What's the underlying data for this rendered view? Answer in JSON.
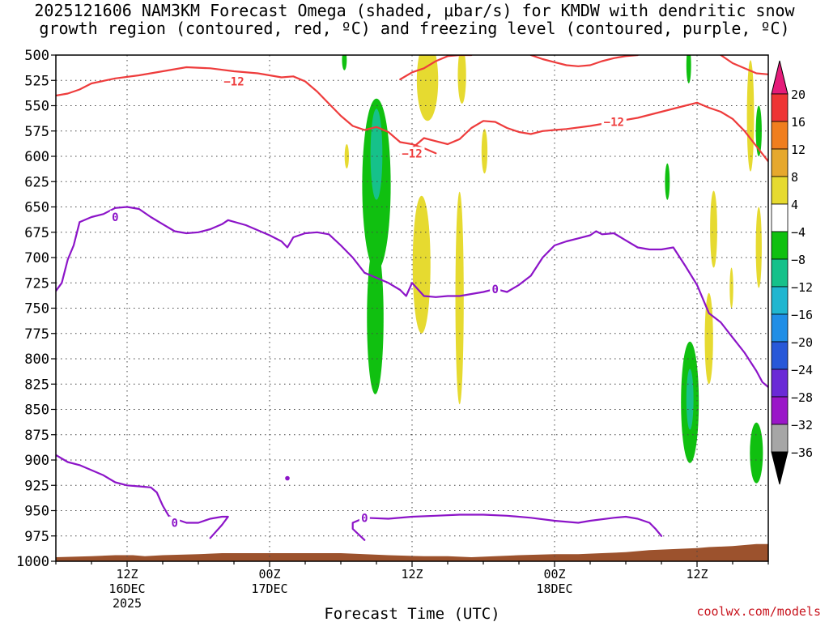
{
  "title_line1": "2025121606 NAM3KM Forecast Omega (shaded, μbar/s) for KMDW with dendritic snow",
  "title_line2": "growth region (contoured, red, ºC) and freezing level (contoured, purple, ºC)",
  "credit": "coolwx.com/models",
  "chart_data": {
    "type": "heatmap",
    "title": "2025121606 NAM3KM Forecast Omega (shaded, μbar/s) for KMDW with dendritic snow growth region (contoured, red, ºC) and freezing level (contoured, purple, ºC)",
    "xlabel": "Forecast Time (UTC)",
    "ylabel": "",
    "x_unit": "forecast hour from 2025-12-16 06Z",
    "xlim": [
      0,
      60
    ],
    "ylim": [
      1000,
      500
    ],
    "y_ticks": [
      500,
      525,
      550,
      575,
      600,
      625,
      650,
      675,
      700,
      725,
      750,
      775,
      800,
      825,
      850,
      875,
      900,
      925,
      950,
      975,
      1000
    ],
    "x_ticks": [
      {
        "x": 6,
        "lines": [
          "12Z",
          "16DEC",
          "2025"
        ]
      },
      {
        "x": 18,
        "lines": [
          "00Z",
          "17DEC"
        ]
      },
      {
        "x": 30,
        "lines": [
          "12Z"
        ]
      },
      {
        "x": 42,
        "lines": [
          "00Z",
          "18DEC"
        ]
      },
      {
        "x": 54,
        "lines": [
          "12Z"
        ]
      }
    ],
    "grid": true,
    "colorbar": {
      "labels": [
        "20",
        "16",
        "12",
        "8",
        "4",
        "−4",
        "−8",
        "−12",
        "−16",
        "−20",
        "−24",
        "−28",
        "−32",
        "−36"
      ],
      "bins": [
        {
          "color": "#e51c7a"
        },
        {
          "color": "#ee3535"
        },
        {
          "color": "#f07e1e"
        },
        {
          "color": "#e6a82d"
        },
        {
          "color": "#e6da30"
        },
        {
          "color": "#ffffff"
        },
        {
          "color": "#10c010"
        },
        {
          "color": "#16c18a"
        },
        {
          "color": "#20b6d0"
        },
        {
          "color": "#208ee6"
        },
        {
          "color": "#2858d8"
        },
        {
          "color": "#6a2ad6"
        },
        {
          "color": "#9a17c8"
        },
        {
          "color": "#a6a6a6"
        }
      ]
    },
    "series": [
      {
        "field": "dendritic growth isotherm",
        "color": "#ee3c3c",
        "value_label": "−12",
        "segments": [
          [
            [
              0,
              540
            ],
            [
              1,
              538
            ],
            [
              2,
              534
            ],
            [
              3,
              528
            ],
            [
              5,
              523
            ],
            [
              7,
              520
            ],
            [
              9,
              516
            ],
            [
              11,
              512
            ],
            [
              13,
              513
            ],
            [
              15,
              516
            ],
            [
              17,
              518
            ],
            [
              18,
              520
            ],
            [
              19,
              522
            ],
            [
              20,
              521
            ],
            [
              21,
              526
            ],
            [
              22,
              536
            ],
            [
              23,
              548
            ],
            [
              24,
              560
            ],
            [
              25,
              570
            ],
            [
              26,
              574
            ],
            [
              27,
              571
            ],
            [
              28,
              576
            ],
            [
              29,
              586
            ],
            [
              30,
              588
            ],
            [
              31,
              592
            ],
            [
              32,
              597
            ]
          ],
          [
            [
              29,
              598
            ],
            [
              30,
              592
            ],
            [
              31,
              582
            ],
            [
              32,
              585
            ],
            [
              33,
              588
            ],
            [
              34,
              583
            ],
            [
              35,
              572
            ],
            [
              36,
              565
            ],
            [
              37,
              566
            ],
            [
              38,
              572
            ],
            [
              39,
              576
            ],
            [
              40,
              578
            ],
            [
              41,
              575
            ],
            [
              42,
              574
            ],
            [
              43,
              573
            ],
            [
              45,
              570
            ],
            [
              47,
              566
            ],
            [
              49,
              562
            ],
            [
              51,
              556
            ],
            [
              53,
              550
            ],
            [
              54,
              547
            ],
            [
              55,
              552
            ],
            [
              56,
              556
            ],
            [
              57,
              563
            ],
            [
              58,
              575
            ],
            [
              59,
              590
            ],
            [
              60,
              605
            ]
          ],
          [
            [
              29,
              524
            ],
            [
              30,
              517
            ],
            [
              31,
              513
            ],
            [
              32,
              506
            ],
            [
              33,
              501
            ],
            [
              34,
              500
            ],
            [
              35,
              500
            ]
          ],
          [
            [
              40,
              500
            ],
            [
              41,
              504
            ],
            [
              42,
              507
            ],
            [
              43,
              510
            ],
            [
              44,
              511
            ],
            [
              45,
              510
            ],
            [
              46,
              506
            ],
            [
              47,
              503
            ],
            [
              48,
              501
            ],
            [
              49,
              500
            ]
          ],
          [
            [
              56,
              500
            ],
            [
              57,
              508
            ],
            [
              58,
              513
            ],
            [
              59,
              518
            ],
            [
              60,
              519
            ]
          ]
        ],
        "labels": [
          {
            "x": 15,
            "y": 526
          },
          {
            "x": 30,
            "y": 597
          },
          {
            "x": 47,
            "y": 566
          }
        ]
      },
      {
        "field": "freezing level",
        "color": "#8c14c8",
        "value_label": "0",
        "segments": [
          [
            [
              0,
              733
            ],
            [
              0.5,
              725
            ],
            [
              1,
              702
            ],
            [
              1.5,
              688
            ],
            [
              2,
              665
            ],
            [
              3,
              660
            ],
            [
              4,
              657
            ],
            [
              5,
              651
            ],
            [
              6,
              650
            ],
            [
              7,
              652
            ],
            [
              8,
              660
            ],
            [
              9,
              667
            ],
            [
              10,
              674
            ],
            [
              11,
              676
            ],
            [
              12,
              675
            ],
            [
              13,
              672
            ],
            [
              14,
              667
            ],
            [
              14.5,
              663
            ],
            [
              16,
              668
            ],
            [
              18,
              678
            ],
            [
              19,
              684
            ],
            [
              19.5,
              690
            ],
            [
              20,
              680
            ],
            [
              21,
              676
            ],
            [
              22,
              675
            ],
            [
              23,
              677
            ],
            [
              24,
              688
            ],
            [
              25,
              700
            ],
            [
              26,
              715
            ],
            [
              27,
              720
            ],
            [
              28,
              725
            ],
            [
              29,
              732
            ],
            [
              29.5,
              738
            ],
            [
              30,
              725
            ],
            [
              31,
              738
            ],
            [
              32,
              739
            ],
            [
              33,
              738
            ],
            [
              34,
              738
            ],
            [
              35,
              736
            ],
            [
              36,
              734
            ],
            [
              37,
              731
            ],
            [
              38,
              734
            ],
            [
              39,
              727
            ],
            [
              40,
              718
            ],
            [
              41,
              700
            ],
            [
              42,
              688
            ],
            [
              43,
              684
            ],
            [
              44,
              681
            ],
            [
              45,
              678
            ],
            [
              45.5,
              674
            ],
            [
              46,
              677
            ],
            [
              47,
              676
            ],
            [
              48,
              683
            ],
            [
              49,
              690
            ],
            [
              50,
              692
            ],
            [
              51,
              692
            ],
            [
              52,
              690
            ],
            [
              53,
              708
            ],
            [
              54,
              727
            ],
            [
              55,
              755
            ],
            [
              56,
              764
            ],
            [
              57,
              779
            ],
            [
              58,
              794
            ],
            [
              59,
              812
            ],
            [
              59.5,
              823
            ],
            [
              60,
              828
            ]
          ],
          [
            [
              0,
              895
            ],
            [
              1,
              902
            ],
            [
              2,
              905
            ],
            [
              4,
              915
            ],
            [
              5,
              922
            ],
            [
              6,
              925
            ],
            [
              7,
              926
            ],
            [
              8,
              927
            ],
            [
              8.5,
              932
            ],
            [
              9,
              945
            ],
            [
              9.5,
              955
            ],
            [
              10,
              958
            ],
            [
              11,
              962
            ],
            [
              12,
              962
            ],
            [
              13,
              958
            ],
            [
              14,
              956
            ],
            [
              14.5,
              956
            ],
            [
              14,
              964
            ],
            [
              13,
              977
            ]
          ],
          [
            [
              26,
              979
            ],
            [
              25,
              968
            ],
            [
              25,
              962
            ],
            [
              26,
              957
            ],
            [
              28,
              958
            ],
            [
              30,
              956
            ],
            [
              32,
              955
            ],
            [
              34,
              954
            ],
            [
              36,
              954
            ],
            [
              38,
              955
            ],
            [
              40,
              957
            ],
            [
              42,
              960
            ],
            [
              44,
              962
            ],
            [
              45,
              960
            ],
            [
              47,
              957
            ],
            [
              48,
              956
            ],
            [
              49,
              958
            ],
            [
              50,
              962
            ],
            [
              50.5,
              968
            ],
            [
              51,
              975
            ]
          ]
        ],
        "labels": [
          {
            "x": 5,
            "y": 660
          },
          {
            "x": 10,
            "y": 962
          },
          {
            "x": 26,
            "y": 957
          },
          {
            "x": 37,
            "y": 731
          }
        ],
        "dots": [
          {
            "x": 19.5,
            "y": 918
          }
        ]
      }
    ],
    "omega_areas": [
      {
        "value_range": [
          4,
          8
        ],
        "x": 24.5,
        "y": 600,
        "rx": 0.18,
        "ry": 12
      },
      {
        "value_range": [
          -8,
          -4
        ],
        "x": 24.3,
        "y": 505,
        "rx": 0.2,
        "ry": 10
      },
      {
        "value_range": [
          4,
          8
        ],
        "x": 31.3,
        "y": 525,
        "rx": 0.9,
        "ry": 40
      },
      {
        "value_range": [
          4,
          8
        ],
        "x": 34.2,
        "y": 520,
        "rx": 0.35,
        "ry": 28
      },
      {
        "value_range": [
          4,
          8
        ],
        "x": 36.1,
        "y": 595,
        "rx": 0.25,
        "ry": 22
      },
      {
        "value_range": [
          4,
          8
        ],
        "x": 30.8,
        "y": 707,
        "rx": 0.75,
        "ry": 68
      },
      {
        "value_range": [
          4,
          8
        ],
        "x": 34.0,
        "y": 740,
        "rx": 0.35,
        "ry": 105
      },
      {
        "value_range": [
          -8,
          -4
        ],
        "x": 27.0,
        "y": 628,
        "rx": 1.2,
        "ry": 85
      },
      {
        "value_range": [
          -12,
          -8
        ],
        "x": 27.0,
        "y": 598,
        "rx": 0.5,
        "ry": 45
      },
      {
        "value_range": [
          -8,
          -4
        ],
        "x": 26.9,
        "y": 760,
        "rx": 0.7,
        "ry": 75
      },
      {
        "value_range": [
          -8,
          -4
        ],
        "x": 53.3,
        "y": 510,
        "rx": 0.2,
        "ry": 18
      },
      {
        "value_range": [
          4,
          8
        ],
        "x": 58.5,
        "y": 560,
        "rx": 0.3,
        "ry": 55
      },
      {
        "value_range": [
          -8,
          -4
        ],
        "x": 59.2,
        "y": 575,
        "rx": 0.25,
        "ry": 25
      },
      {
        "value_range": [
          -8,
          -4
        ],
        "x": 51.5,
        "y": 625,
        "rx": 0.2,
        "ry": 18
      },
      {
        "value_range": [
          4,
          8
        ],
        "x": 55.4,
        "y": 672,
        "rx": 0.3,
        "ry": 38
      },
      {
        "value_range": [
          4,
          8
        ],
        "x": 59.2,
        "y": 690,
        "rx": 0.25,
        "ry": 40
      },
      {
        "value_range": [
          4,
          8
        ],
        "x": 56.9,
        "y": 730,
        "rx": 0.15,
        "ry": 20
      },
      {
        "value_range": [
          4,
          8
        ],
        "x": 55.0,
        "y": 780,
        "rx": 0.35,
        "ry": 45
      },
      {
        "value_range": [
          -8,
          -4
        ],
        "x": 53.4,
        "y": 843,
        "rx": 0.75,
        "ry": 60
      },
      {
        "value_range": [
          -12,
          -8
        ],
        "x": 53.4,
        "y": 840,
        "rx": 0.3,
        "ry": 30
      },
      {
        "value_range": [
          -8,
          -4
        ],
        "x": 59.0,
        "y": 893,
        "rx": 0.55,
        "ry": 30
      }
    ],
    "surface_pressure": [
      {
        "x": 0,
        "p": 996
      },
      {
        "x": 3,
        "p": 995
      },
      {
        "x": 5,
        "p": 994
      },
      {
        "x": 6.5,
        "p": 994
      },
      {
        "x": 7.5,
        "p": 995
      },
      {
        "x": 9,
        "p": 994
      },
      {
        "x": 12,
        "p": 993
      },
      {
        "x": 14,
        "p": 992
      },
      {
        "x": 17,
        "p": 992
      },
      {
        "x": 24,
        "p": 992
      },
      {
        "x": 26,
        "p": 993
      },
      {
        "x": 28,
        "p": 994
      },
      {
        "x": 31,
        "p": 995
      },
      {
        "x": 33,
        "p": 995
      },
      {
        "x": 35,
        "p": 996
      },
      {
        "x": 37,
        "p": 995
      },
      {
        "x": 39,
        "p": 994
      },
      {
        "x": 42,
        "p": 993
      },
      {
        "x": 44,
        "p": 993
      },
      {
        "x": 46,
        "p": 992
      },
      {
        "x": 48,
        "p": 991
      },
      {
        "x": 50,
        "p": 989
      },
      {
        "x": 52,
        "p": 988
      },
      {
        "x": 54,
        "p": 987
      },
      {
        "x": 55,
        "p": 986
      },
      {
        "x": 57,
        "p": 985
      },
      {
        "x": 59,
        "p": 983
      },
      {
        "x": 60,
        "p": 983
      }
    ],
    "terrain_color": "#9c522d"
  }
}
